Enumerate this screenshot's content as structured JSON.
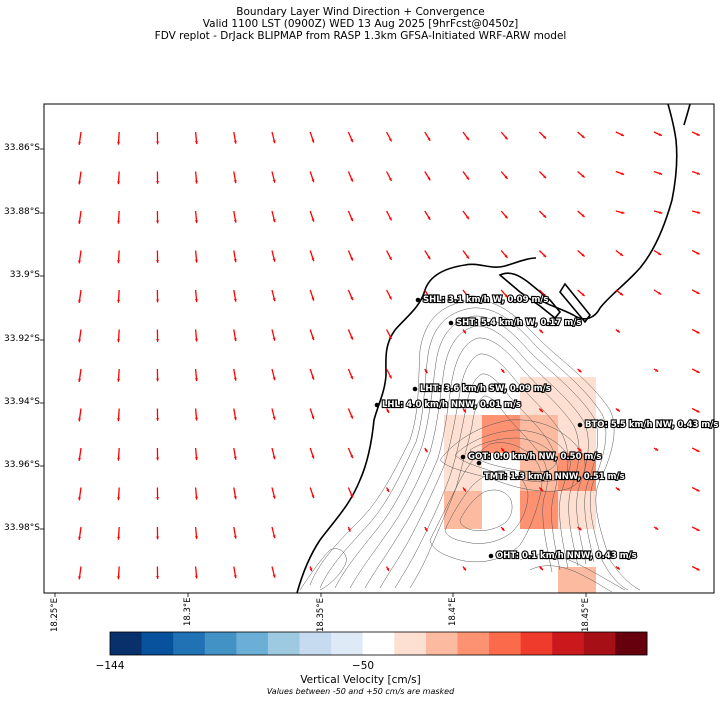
{
  "title": {
    "line1": "Boundary Layer Wind Direction + Convergence",
    "line2": "Valid 1100 LST (0900Z) WED 13 Aug 2025 [9hrFcst@0450z]",
    "line3": "FDV replot - DrJack BLIPMAP from RASP 1.3km GFSA-Initiated WRF-ARW model"
  },
  "axes": {
    "y_ticks": [
      "33.86°S",
      "33.88°S",
      "33.9°S",
      "33.92°S",
      "33.94°S",
      "33.96°S",
      "33.98°S"
    ],
    "x_ticks": [
      "18.25°E",
      "18.3°E",
      "18.35°E",
      "18.4°E",
      "18.45°E"
    ]
  },
  "stations": [
    {
      "label": "SHL: 3.1 km/h W, 0.09 m/s"
    },
    {
      "label": "SHT: 5.4 km/h W, 0.17 m/s"
    },
    {
      "label": "LHT: 3.6 km/h SW, 0.09 m/s"
    },
    {
      "label": "LHL: 4.0 km/h NNW, 0.01 m/s"
    },
    {
      "label": "BTO: 5.5 km/h NW, 0.43 m/s"
    },
    {
      "label": "GOT: 0.0 km/h NW, 0.50 m/s"
    },
    {
      "label": "TMT: 1.3 km/h NNW, 0.51 m/s"
    },
    {
      "label": "OHT: 0.1 km/h NNW, 0.43 m/s"
    }
  ],
  "colorbar": {
    "tick_labels": [
      "−144",
      "−50"
    ],
    "label": "Vertical Velocity [cm/s]",
    "note": "Values between -50 and +50 cm/s are masked",
    "colors": [
      "#08306b",
      "#08519c",
      "#2171b5",
      "#4292c6",
      "#6baed6",
      "#9ecae1",
      "#c6dbef",
      "#deebf7",
      "#ffffff",
      "#fee0d2",
      "#fcbba1",
      "#fc9272",
      "#fb6a4a",
      "#ef3b2c",
      "#cb181d",
      "#a50f15",
      "#67000d"
    ]
  },
  "arrow_color": "#ff0000"
}
